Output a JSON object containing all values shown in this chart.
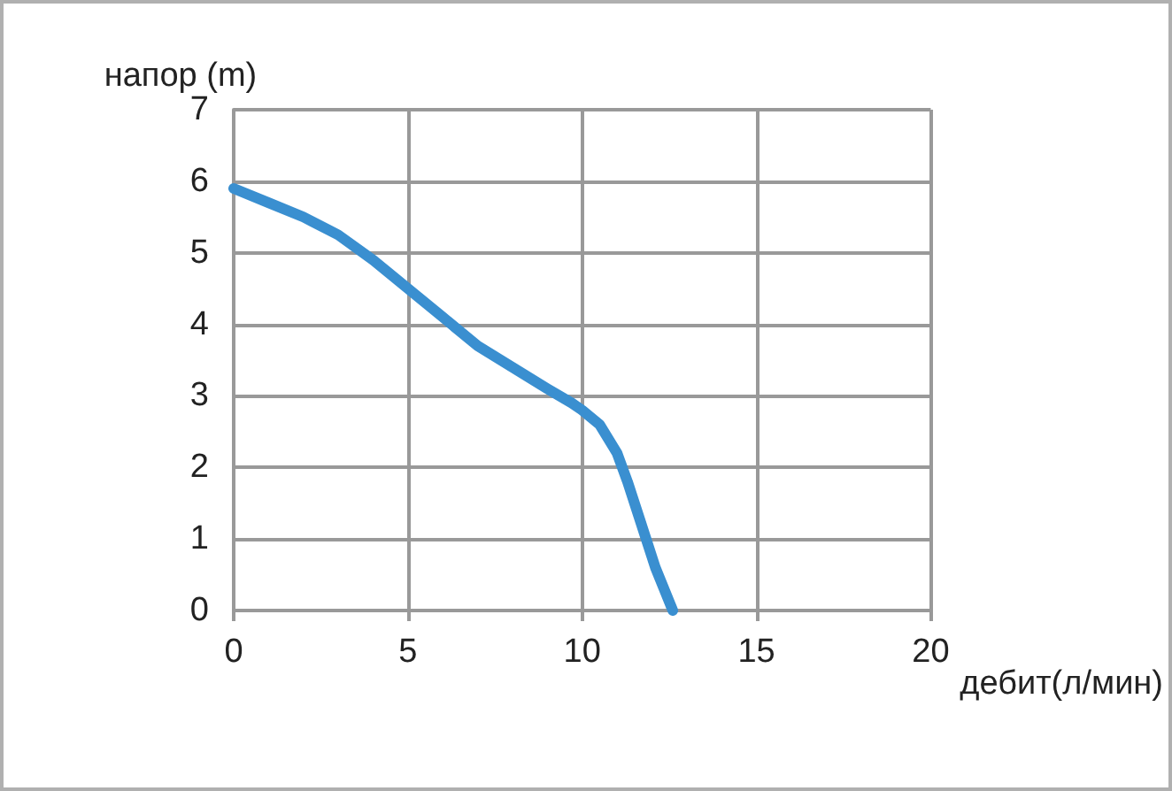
{
  "chart_data": {
    "type": "line",
    "xlabel": "дебит(л/мин)",
    "ylabel": "напор (m)",
    "series": [
      {
        "color": "#3a8fd0",
        "x": [
          0,
          1,
          2,
          3,
          4,
          5,
          6,
          7,
          8,
          9,
          9.7,
          10,
          10.5,
          11,
          11.3,
          11.7,
          12.1,
          12.6
        ],
        "values": [
          5.9,
          5.7,
          5.5,
          5.25,
          4.9,
          4.5,
          4.1,
          3.7,
          3.4,
          3.1,
          2.9,
          2.8,
          2.6,
          2.2,
          1.8,
          1.2,
          0.6,
          0
        ]
      }
    ],
    "xlim": [
      0,
      20
    ],
    "xticks": [
      0,
      5,
      10,
      15,
      20
    ],
    "ylim": [
      0,
      7
    ],
    "yticks": [
      0,
      1,
      2,
      3,
      4,
      5,
      6,
      7
    ],
    "grid": true,
    "marker": "none",
    "line_style": "solid"
  }
}
